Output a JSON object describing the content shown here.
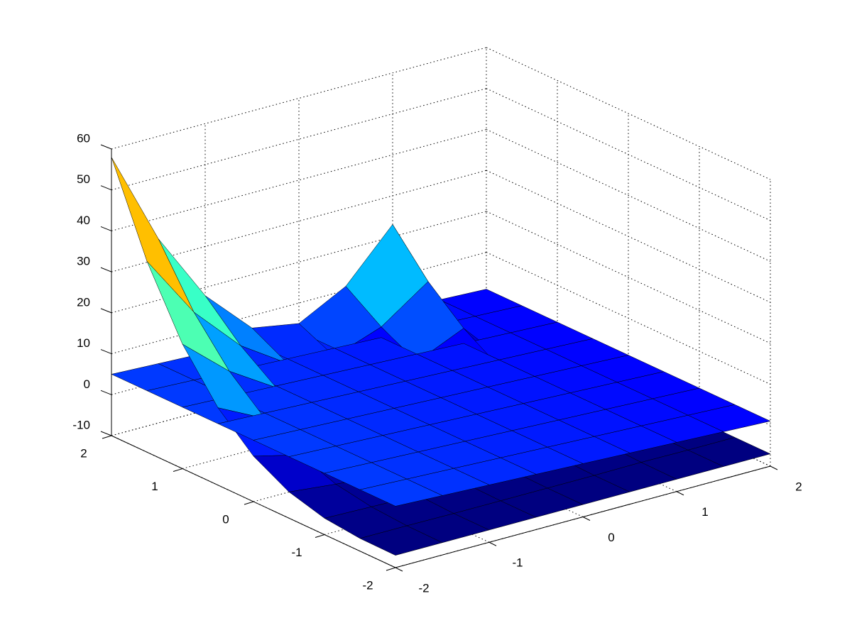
{
  "chart_data": {
    "type": "surface",
    "xlim": [
      -2,
      2
    ],
    "ylim": [
      -2,
      2
    ],
    "zlim": [
      -10,
      60
    ],
    "xticks": [
      -2,
      -1,
      0,
      1,
      2
    ],
    "yticks": [
      -2,
      -1,
      0,
      1,
      2
    ],
    "zticks": [
      -10,
      0,
      10,
      20,
      30,
      40,
      50,
      60
    ],
    "grid": true,
    "colormap": "jet",
    "edge_color": "#000000",
    "surfaces": [
      {
        "x": [
          -2,
          -1.5,
          -1,
          -0.5,
          0,
          0.5,
          1,
          1.5,
          2
        ],
        "y": [
          -2,
          -1.5,
          -1,
          -0.5,
          0,
          0.5,
          1,
          1.5,
          2
        ],
        "z": [
          [
            -7,
            -7,
            -7,
            -7,
            -7,
            -7,
            -7,
            -7,
            -7
          ],
          [
            -6.9,
            -6.9,
            -7,
            -7,
            -7,
            -7,
            -6.9,
            -7,
            -7
          ],
          [
            -6,
            -6.3,
            -6.6,
            -6.8,
            -6.8,
            -6.7,
            -6.5,
            -7,
            -7
          ],
          [
            -3.6,
            -4.8,
            -5.7,
            -6.3,
            -6.4,
            -6.1,
            -5.4,
            -6.9,
            -7
          ],
          [
            1.1,
            -1.7,
            -3.9,
            -5.3,
            -5.5,
            -4.8,
            -3.3,
            -6.8,
            -7
          ],
          [
            8.9,
            3.2,
            -0.9,
            -3.6,
            -4.1,
            -2.6,
            0.3,
            -6.5,
            -7
          ],
          [
            20.4,
            10.7,
            3.6,
            -1.1,
            -1.9,
            0.6,
            5.7,
            -6.2,
            -7
          ],
          [
            36.6,
            21.1,
            9.8,
            2.4,
            1,
            5.1,
            13.1,
            -5.7,
            -7
          ],
          [
            58,
            35,
            18,
            7,
            5,
            11,
            23,
            -5,
            -7
          ]
        ]
      },
      {
        "x": [
          -2,
          -1.5,
          -1,
          -0.5,
          0,
          0.5,
          1,
          1.5,
          2
        ],
        "y": [
          -2,
          -1.5,
          -1,
          -0.5,
          0,
          0.5,
          1,
          1.5,
          2
        ],
        "z": [
          [
            5,
            4.5,
            4,
            3.5,
            3,
            2.5,
            2,
            1.5,
            1
          ],
          [
            5,
            4.5,
            4,
            3.5,
            3,
            2.5,
            2,
            1.5,
            1
          ],
          [
            5,
            4.5,
            4,
            3.5,
            3,
            2.5,
            2,
            1.5,
            1
          ],
          [
            5,
            4.5,
            4,
            3.5,
            3,
            2.5,
            2,
            1.5,
            1
          ],
          [
            5,
            4.5,
            4,
            3.5,
            3,
            2.5,
            2,
            1.5,
            1
          ],
          [
            5,
            4.5,
            4,
            3.5,
            3,
            2.5,
            2,
            1.5,
            1
          ],
          [
            5,
            4.5,
            4,
            3.5,
            3,
            2.5,
            2,
            1.5,
            1
          ],
          [
            5,
            4.5,
            4,
            3.5,
            3,
            2.5,
            2,
            1.5,
            1
          ],
          [
            5,
            4.5,
            4,
            3.5,
            3,
            2.5,
            2,
            1.5,
            1
          ]
        ]
      }
    ]
  }
}
